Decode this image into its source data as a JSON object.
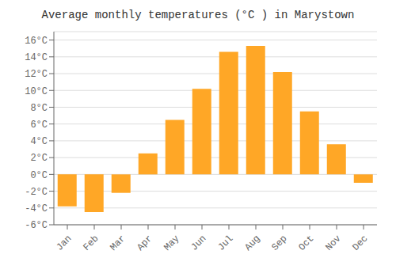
{
  "chart_data": {
    "type": "bar",
    "title": "Average monthly temperatures (°C ) in Marystown",
    "categories": [
      "Jan",
      "Feb",
      "Mar",
      "Apr",
      "May",
      "Jun",
      "Jul",
      "Aug",
      "Sep",
      "Oct",
      "Nov",
      "Dec"
    ],
    "values": [
      -3.8,
      -4.5,
      -2.2,
      2.5,
      6.5,
      10.2,
      14.6,
      15.3,
      12.2,
      7.5,
      3.6,
      -1.0
    ],
    "color": "#FFA726",
    "ylim": [
      -6,
      17
    ],
    "yticks": [
      {
        "value": -6,
        "label": "-6°C"
      },
      {
        "value": -4,
        "label": "-4°C"
      },
      {
        "value": -2,
        "label": "-2°C"
      },
      {
        "value": 0,
        "label": "0°C"
      },
      {
        "value": 2,
        "label": "2°C"
      },
      {
        "value": 4,
        "label": "4°C"
      },
      {
        "value": 6,
        "label": "6°C"
      },
      {
        "value": 8,
        "label": "8°C"
      },
      {
        "value": 10,
        "label": "10°C"
      },
      {
        "value": 12,
        "label": "12°C"
      },
      {
        "value": 14,
        "label": "14°C"
      },
      {
        "value": 16,
        "label": "16°C"
      }
    ],
    "grid": true
  }
}
